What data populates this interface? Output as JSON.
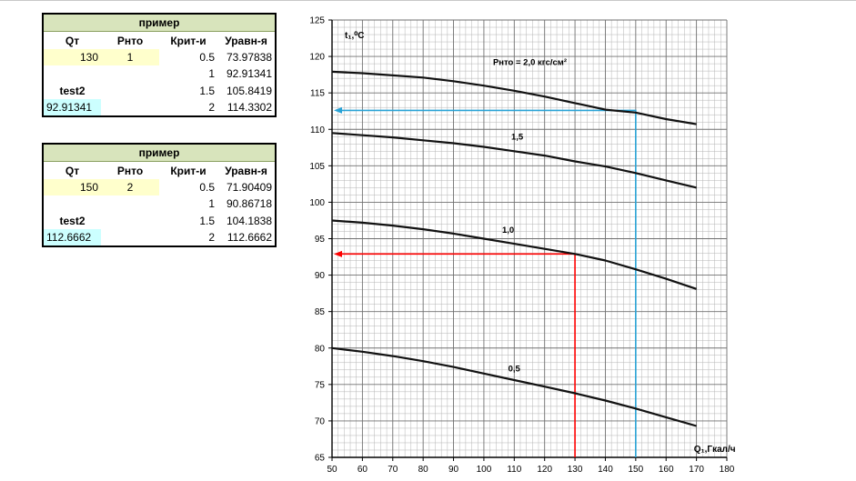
{
  "tables": [
    {
      "title": "пример",
      "headers": [
        "Qт",
        "Рнто",
        "Крит-и",
        "Уравн-я"
      ],
      "qt": "130",
      "pnto": "1",
      "rows": [
        {
          "crit": "0.5",
          "eq": "73.97838"
        },
        {
          "crit": "1",
          "eq": "92.91341"
        },
        {
          "crit": "1.5",
          "eq": "105.8419"
        },
        {
          "crit": "2",
          "eq": "114.3302"
        }
      ],
      "test_label": "test2",
      "result": "92.91341"
    },
    {
      "title": "пример",
      "headers": [
        "Qт",
        "Рнто",
        "Крит-и",
        "Уравн-я"
      ],
      "qt": "150",
      "pnto": "2",
      "rows": [
        {
          "crit": "0.5",
          "eq": "71.90409"
        },
        {
          "crit": "1",
          "eq": "90.86718"
        },
        {
          "crit": "1.5",
          "eq": "104.1838"
        },
        {
          "crit": "2",
          "eq": "112.6662"
        }
      ],
      "test_label": "test2",
      "result": "112.6662"
    }
  ],
  "chart_data": {
    "type": "line",
    "xlabel": "Q₁,Гкал/ч",
    "ylabel": "t₁,⁰C",
    "xlim": [
      50,
      180
    ],
    "ylim": [
      65,
      125
    ],
    "x_ticks": [
      50,
      60,
      70,
      80,
      90,
      100,
      110,
      120,
      130,
      140,
      150,
      160,
      170,
      180
    ],
    "y_ticks": [
      65,
      70,
      75,
      80,
      85,
      90,
      95,
      100,
      105,
      110,
      115,
      120,
      125
    ],
    "grid": true,
    "series": [
      {
        "name": "Pнто = 2,0 кгс/см²",
        "x": [
          50,
          60,
          70,
          80,
          90,
          100,
          110,
          120,
          130,
          140,
          150,
          160,
          170
        ],
        "y": [
          117.9,
          117.7,
          117.4,
          117.1,
          116.6,
          116.0,
          115.3,
          114.5,
          113.6,
          112.7,
          112.3,
          111.4,
          110.7
        ]
      },
      {
        "name": "1,5",
        "x": [
          50,
          60,
          70,
          80,
          90,
          100,
          110,
          120,
          130,
          140,
          150,
          160,
          170
        ],
        "y": [
          109.5,
          109.2,
          108.9,
          108.5,
          108.1,
          107.6,
          107.0,
          106.4,
          105.6,
          104.9,
          104.0,
          103.0,
          102.0
        ]
      },
      {
        "name": "1,0",
        "x": [
          50,
          60,
          70,
          80,
          90,
          100,
          110,
          120,
          130,
          140,
          150,
          160,
          170
        ],
        "y": [
          97.5,
          97.2,
          96.8,
          96.3,
          95.7,
          95.0,
          94.3,
          93.6,
          92.9,
          92.0,
          90.8,
          89.5,
          88.1
        ]
      },
      {
        "name": "0,5",
        "x": [
          50,
          60,
          70,
          80,
          90,
          100,
          110,
          120,
          130,
          140,
          150,
          160,
          170
        ],
        "y": [
          80.0,
          79.5,
          78.9,
          78.2,
          77.4,
          76.5,
          75.6,
          74.7,
          73.8,
          72.8,
          71.7,
          70.5,
          69.3
        ]
      }
    ],
    "series_labels": [
      {
        "text": "Pнто = 2,0 кгс/см²",
        "x": 103,
        "y": 118.8
      },
      {
        "text": "1,5",
        "x": 109,
        "y": 108.6
      },
      {
        "text": "1,0",
        "x": 106,
        "y": 95.8
      },
      {
        "text": "0,5",
        "x": 108,
        "y": 76.8
      }
    ],
    "guides": [
      {
        "color": "#ff0000",
        "x": 130,
        "y": 92.9
      },
      {
        "color": "#29a3d6",
        "x": 150,
        "y": 112.6
      }
    ]
  }
}
